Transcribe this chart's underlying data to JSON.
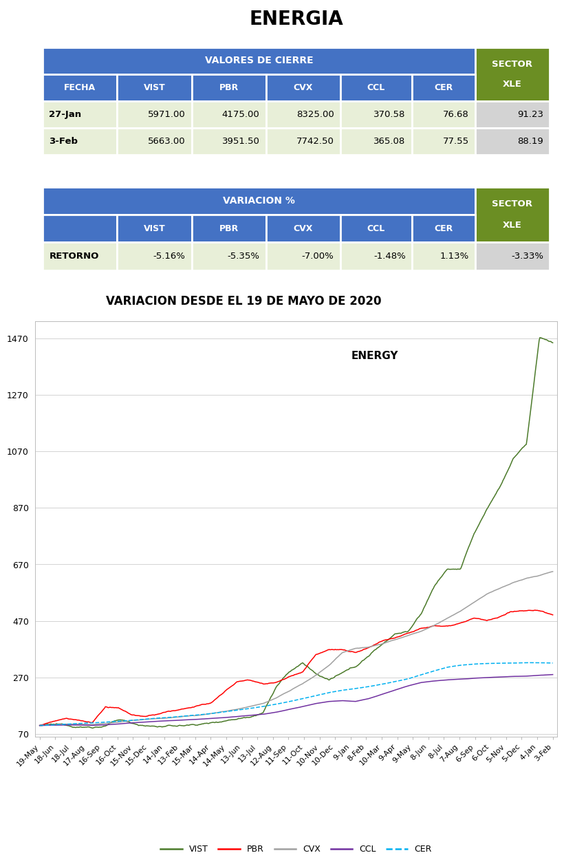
{
  "title": "ENERGIA",
  "table1_header_main": "VALORES DE CIERRE",
  "table1_header_sector": [
    "SECTOR",
    "XLE"
  ],
  "table1_col_headers": [
    "FECHA",
    "VIST",
    "PBR",
    "CVX",
    "CCL",
    "CER",
    "XLE"
  ],
  "table1_rows": [
    [
      "27-Jan",
      "5971.00",
      "4175.00",
      "8325.00",
      "370.58",
      "76.68",
      "91.23"
    ],
    [
      "3-Feb",
      "5663.00",
      "3951.50",
      "7742.50",
      "365.08",
      "77.55",
      "88.19"
    ]
  ],
  "table2_header_main": "VARIACION %",
  "table2_header_sector": [
    "SECTOR",
    "XLE"
  ],
  "table2_col_headers": [
    "",
    "VIST",
    "PBR",
    "CVX",
    "CCL",
    "CER",
    "XLE"
  ],
  "table2_rows": [
    [
      "RETORNO",
      "-5.16%",
      "-5.35%",
      "-7.00%",
      "-1.48%",
      "1.13%",
      "-3.33%"
    ]
  ],
  "header_bg": "#4472C4",
  "header_fg": "#FFFFFF",
  "sector_bg": "#6B8E23",
  "sector_fg": "#FFFFFF",
  "data_bg_light": "#E8EFD8",
  "data_bg_sector": "#D3D3D3",
  "empty_row_bg": "#F5F5F5",
  "chart_title": "VARIACION DESDE EL 19 DE MAYO DE 2020",
  "chart_inner_title": "ENERGY",
  "yticks": [
    70,
    270,
    470,
    670,
    870,
    1070,
    1270,
    1470
  ],
  "xtick_labels": [
    "19-May",
    "18-Jun",
    "18-Jul",
    "17-Aug",
    "16-Sep",
    "16-Oct",
    "15-Nov",
    "15-Dec",
    "14-Jan",
    "13-Feb",
    "15-Mar",
    "14-Apr",
    "14-May",
    "13-Jun",
    "13-Jul",
    "12-Aug",
    "11-Sep",
    "11-Oct",
    "10-Nov",
    "10-Dec",
    "9-Jan",
    "8-Feb",
    "10-Mar",
    "9-Apr",
    "9-May",
    "8-Jun",
    "8-Jul",
    "7-Aug",
    "6-Sep",
    "6-Oct",
    "5-Nov",
    "5-Dec",
    "4-Jan",
    "3-Feb"
  ],
  "series_colors": {
    "VIST": "#4B7A2A",
    "PBR": "#FF0000",
    "CVX": "#A0A0A0",
    "CCL": "#7030A0",
    "CER": "#00B0F0"
  }
}
